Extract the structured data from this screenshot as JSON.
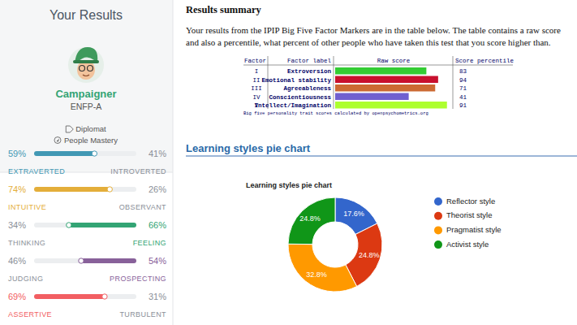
{
  "profile": {
    "heading": "Your Results",
    "type_name": "Campaigner",
    "type_code": "ENFP-A",
    "role": "Diplomat",
    "strategy": "People Mastery"
  },
  "traits": [
    {
      "left": {
        "name": "EXTRAVERTED",
        "value": 59,
        "label": "59%"
      },
      "right": {
        "name": "INTROVERTED",
        "value": 41,
        "label": "41%"
      },
      "color": "#4298b4"
    },
    {
      "left": {
        "name": "INTUITIVE",
        "value": 74,
        "label": "74%"
      },
      "right": {
        "name": "OBSERVANT",
        "value": 26,
        "label": "26%"
      },
      "color": "#e4ae3a"
    },
    {
      "left": {
        "name": "THINKING",
        "value": 34,
        "label": "34%"
      },
      "right": {
        "name": "FEELING",
        "value": 66,
        "label": "66%"
      },
      "color": "#33a474"
    },
    {
      "left": {
        "name": "JUDGING",
        "value": 46,
        "label": "46%"
      },
      "right": {
        "name": "PROSPECTING",
        "value": 54,
        "label": "54%"
      },
      "color": "#88619a"
    },
    {
      "left": {
        "name": "ASSERTIVE",
        "value": 69,
        "label": "69%"
      },
      "right": {
        "name": "TURBULENT",
        "value": 31,
        "label": "31%"
      },
      "color": "#f25e62"
    }
  ],
  "results_summary": {
    "title": "Results summary",
    "text": "Your results from the IPIP Big Five Factor Markers are in the table below. The table contains a raw score and also a percentile, what percent of other people who have taken this test that you score higher than."
  },
  "big_five": {
    "columns": [
      "Factor",
      "Factor label",
      "Raw score",
      "Score percentile"
    ],
    "rows": [
      {
        "factor": "I",
        "label": "Extroversion",
        "raw_score": 31,
        "percentile": 83
      },
      {
        "factor": "II",
        "label": "Emotional stability",
        "raw_score": 35,
        "percentile": 94
      },
      {
        "factor": "III",
        "label": "Agreeableness",
        "raw_score": 34,
        "percentile": 71
      },
      {
        "factor": "IV",
        "label": "Conscientiousness",
        "raw_score": 25,
        "percentile": 41
      },
      {
        "factor": "V",
        "label": "Intellect/Imagination",
        "raw_score": 38,
        "percentile": 91
      }
    ],
    "raw_score_range": [
      0,
      40
    ],
    "colors": [
      "#33cc33",
      "#c8102e",
      "#cc6a33",
      "#7060d0",
      "#adff2f"
    ],
    "caption": "Big five personality trait scores calculated by openpsychometrics.org"
  },
  "section_heading": "Learning styles pie chart",
  "chart_data": {
    "type": "pie",
    "title": "Learning styles pie chart",
    "categories": [
      "Reflector style",
      "Theorist style",
      "Pragmatist style",
      "Activist style"
    ],
    "values": [
      17.6,
      24.8,
      32.8,
      24.8
    ],
    "value_labels": [
      "17.6%",
      "24.8%",
      "32.8%",
      "24.8%"
    ],
    "colors": [
      "#3366cc",
      "#dc3912",
      "#ff9900",
      "#109618"
    ],
    "data_labels": true,
    "legend": "right"
  }
}
